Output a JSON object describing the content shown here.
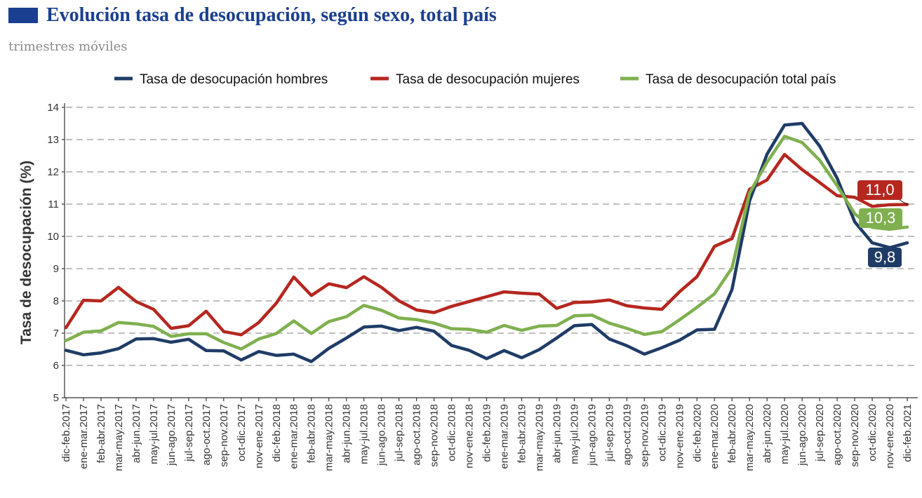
{
  "header": {
    "title": "Evolución tasa de desocupación, según sexo, total país",
    "subtitle": "trimestres móviles"
  },
  "colors": {
    "title": "#1b3f8f",
    "swatch": "#1b3f8f",
    "hombres": "#1f3c66",
    "mujeres": "#b5271f",
    "total": "#7fb04f",
    "grid": "#9a9a9a"
  },
  "chart_data": {
    "type": "line",
    "title": "Evolución tasa de desocupación, según sexo, total país",
    "subtitle": "trimestres móviles",
    "xlabel": "",
    "ylabel": "Tasa de desocupación (%)",
    "ylim": [
      5,
      14
    ],
    "yticks": [
      5,
      6,
      7,
      8,
      9,
      10,
      11,
      12,
      13,
      14
    ],
    "grid": true,
    "legend_position": "top",
    "categories": [
      "dic-feb.2017",
      "ene-mar.2017",
      "feb-abr.2017",
      "mar-may.2017",
      "abr-jun.2017",
      "may-jul.2017",
      "jun-ago.2017",
      "jul-sep.2017",
      "ago-oct.2017",
      "sep-nov.2017",
      "oct-dic.2017",
      "nov-ene.2017",
      "dic-feb.2018",
      "ene-mar.2018",
      "feb-abr.2018",
      "mar-may.2018",
      "abr-jun.2018",
      "may-jul.2018",
      "jun-ago.2018",
      "jul-sep.2018",
      "ago-oct.2018",
      "sep-nov.2018",
      "oct-dic.2018",
      "nov-ene.2018",
      "dic-feb.2019",
      "ene-mar.2019",
      "feb-abr.2019",
      "mar-may.2019",
      "abr-jun.2019",
      "may-jul.2019",
      "jun-ago.2019",
      "jul-sep.2019",
      "ago-oct.2019",
      "sep-nov.2019",
      "oct-dic.2019",
      "nov-ene.2019",
      "dic-feb.2020",
      "ene-mar.2020",
      "feb-abr.2020",
      "mar-may.2020",
      "abr-jun.2020",
      "may-jul.2020",
      "jun-ago.2020",
      "jul-sep.2020",
      "ago-oct.2020",
      "sep-nov.2020",
      "oct-dic.2020",
      "nov-ene.2020",
      "dic-feb.2021"
    ],
    "series": [
      {
        "name": "Tasa de desocupación hombres",
        "end_label": "9,8",
        "values": [
          6.47,
          6.33,
          6.39,
          6.52,
          6.82,
          6.83,
          6.72,
          6.81,
          6.46,
          6.45,
          6.17,
          6.43,
          6.31,
          6.35,
          6.12,
          6.53,
          6.85,
          7.19,
          7.22,
          7.08,
          7.18,
          7.06,
          6.62,
          6.47,
          6.21,
          6.46,
          6.24,
          6.49,
          6.85,
          7.23,
          7.27,
          6.82,
          6.61,
          6.35,
          6.55,
          6.78,
          7.1,
          7.12,
          8.35,
          11.1,
          12.55,
          13.45,
          13.5,
          12.8,
          11.8,
          10.45,
          9.8,
          9.65,
          9.8
        ]
      },
      {
        "name": "Tasa de desocupación mujeres",
        "end_label": "11,0",
        "values": [
          7.17,
          8.02,
          8.0,
          8.42,
          7.98,
          7.74,
          7.15,
          7.23,
          7.68,
          7.05,
          6.95,
          7.33,
          7.93,
          8.74,
          8.17,
          8.53,
          8.41,
          8.75,
          8.42,
          8.0,
          7.72,
          7.64,
          7.83,
          7.98,
          8.13,
          8.28,
          8.24,
          8.21,
          7.77,
          7.95,
          7.97,
          8.03,
          7.85,
          7.78,
          7.74,
          8.28,
          8.75,
          9.69,
          9.93,
          11.46,
          11.75,
          12.54,
          12.07,
          11.67,
          11.26,
          11.21,
          10.93,
          10.98,
          10.99
        ]
      },
      {
        "name": "Tasa de desocupación total país",
        "end_label": "10,3",
        "values": [
          6.77,
          7.03,
          7.07,
          7.33,
          7.29,
          7.21,
          6.9,
          6.98,
          6.98,
          6.71,
          6.51,
          6.82,
          6.99,
          7.38,
          6.99,
          7.36,
          7.51,
          7.86,
          7.71,
          7.47,
          7.42,
          7.31,
          7.14,
          7.12,
          7.03,
          7.24,
          7.09,
          7.22,
          7.24,
          7.54,
          7.56,
          7.31,
          7.15,
          6.96,
          7.05,
          7.41,
          7.8,
          8.22,
          9.02,
          11.34,
          12.3,
          13.1,
          12.91,
          12.36,
          11.57,
          10.7,
          10.28,
          10.22,
          10.29
        ]
      }
    ]
  }
}
